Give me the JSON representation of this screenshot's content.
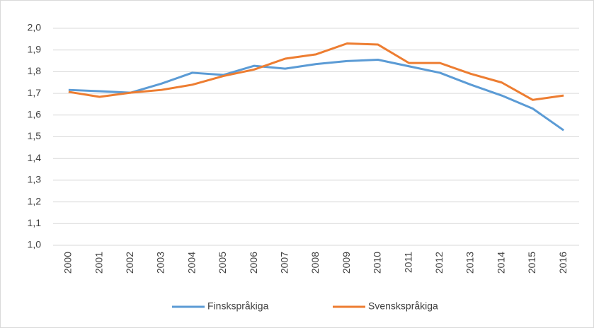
{
  "chart_data": {
    "type": "line",
    "categories": [
      "2000",
      "2001",
      "2002",
      "2003",
      "2004",
      "2005",
      "2006",
      "2007",
      "2008",
      "2009",
      "2010",
      "2011",
      "2012",
      "2013",
      "2014",
      "2015",
      "2016"
    ],
    "series": [
      {
        "name": "Finskspråkiga",
        "color": "#5b9bd5",
        "values": [
          1.716,
          1.71,
          1.703,
          1.745,
          1.795,
          1.785,
          1.827,
          1.814,
          1.835,
          1.849,
          1.855,
          1.825,
          1.795,
          1.74,
          1.69,
          1.63,
          1.53
        ]
      },
      {
        "name": "Svenskspråkiga",
        "color": "#ed7d31",
        "values": [
          1.707,
          1.684,
          1.703,
          1.716,
          1.74,
          1.78,
          1.81,
          1.86,
          1.88,
          1.93,
          1.925,
          1.84,
          1.84,
          1.79,
          1.75,
          1.67,
          1.69
        ]
      }
    ],
    "ylim": [
      1.0,
      2.0
    ],
    "yticks": [
      {
        "value": 1.0,
        "label": "1,0"
      },
      {
        "value": 1.1,
        "label": "1,1"
      },
      {
        "value": 1.2,
        "label": "1,2"
      },
      {
        "value": 1.3,
        "label": "1,3"
      },
      {
        "value": 1.4,
        "label": "1,4"
      },
      {
        "value": 1.5,
        "label": "1,5"
      },
      {
        "value": 1.6,
        "label": "1,6"
      },
      {
        "value": 1.7,
        "label": "1,7"
      },
      {
        "value": 1.8,
        "label": "1,8"
      },
      {
        "value": 1.9,
        "label": "1,9"
      },
      {
        "value": 2.0,
        "label": "2,0"
      }
    ],
    "grid": true,
    "legend": "bottom"
  }
}
